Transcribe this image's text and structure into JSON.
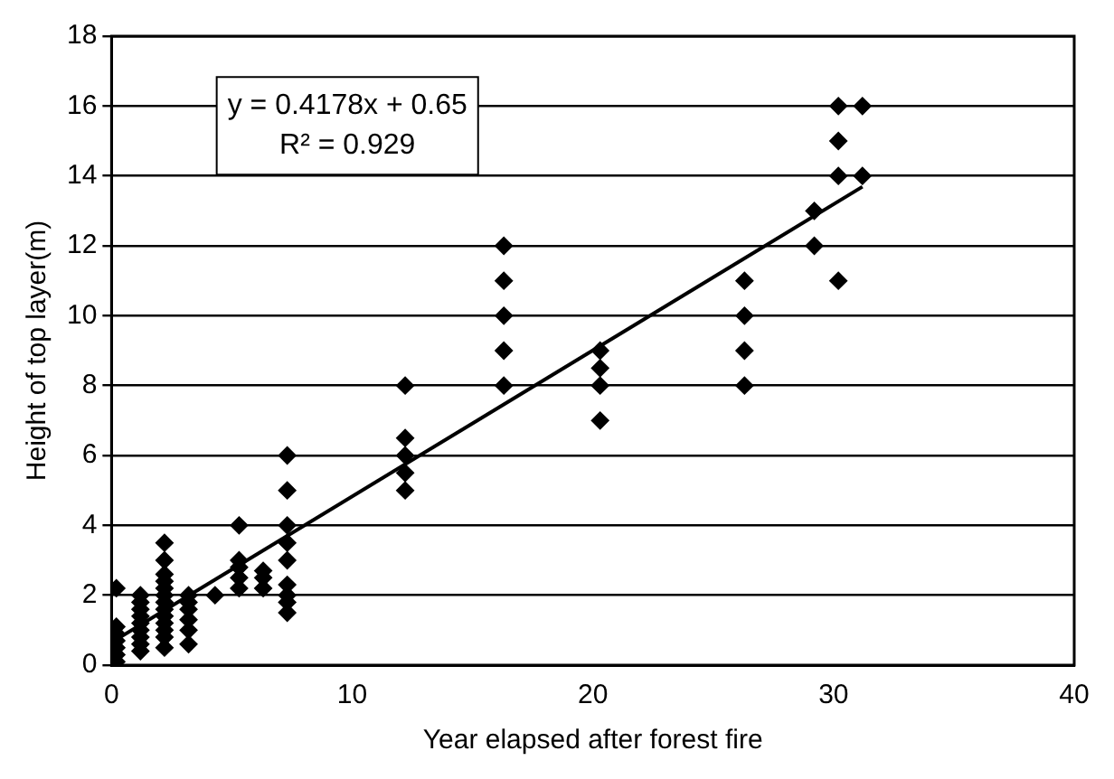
{
  "chart_data": {
    "type": "scatter",
    "xlabel": "Year elapsed after forest fire",
    "ylabel": "Height of top layer(m)",
    "xlim": [
      0,
      40
    ],
    "xticks": [
      0,
      10,
      20,
      30,
      40
    ],
    "ylim": [
      0,
      18
    ],
    "yticks": [
      0,
      2,
      4,
      6,
      8,
      10,
      12,
      14,
      16,
      18
    ],
    "grid": "y",
    "legend": false,
    "marker": "diamond",
    "annotations": [
      "y = 0.4178x + 0.65",
      "R² = 0.929"
    ],
    "series": [
      {
        "color": "#000000",
        "x": [
          0.2,
          0.2,
          0.2,
          0.2,
          0.2,
          0.2,
          0.2,
          1.2,
          1.2,
          1.2,
          1.2,
          1.2,
          1.2,
          1.2,
          1.2,
          1.2,
          2.2,
          2.2,
          2.2,
          2.2,
          2.2,
          2.2,
          2.2,
          2.2,
          2.2,
          2.2,
          2.2,
          2.2,
          2.2,
          3.2,
          3.2,
          3.2,
          3.2,
          3.2,
          3.2,
          4.3,
          5.3,
          5.3,
          5.3,
          5.3,
          5.3,
          6.3,
          6.3,
          6.3,
          7.3,
          7.3,
          7.3,
          7.3,
          7.3,
          7.3,
          7.3,
          7.3,
          7.3,
          12.2,
          12.2,
          12.2,
          12.2,
          12.2,
          16.3,
          16.3,
          16.3,
          16.3,
          16.3,
          20.3,
          20.3,
          20.3,
          20.3,
          26.3,
          26.3,
          26.3,
          26.3,
          29.2,
          29.2,
          30.2,
          30.2,
          30.2,
          30.2,
          31.2,
          31.2
        ],
        "values": [
          0.1,
          0.3,
          0.5,
          0.7,
          0.9,
          1.1,
          2.2,
          0.4,
          0.6,
          0.8,
          1,
          1.2,
          1.4,
          1.6,
          1.8,
          2,
          0.5,
          0.8,
          1,
          1.2,
          1.4,
          1.6,
          1.8,
          2,
          2.2,
          2.4,
          2.6,
          3,
          3.5,
          0.6,
          1,
          1.3,
          1.6,
          1.8,
          2,
          2,
          2.2,
          2.5,
          2.8,
          3,
          4,
          2.2,
          2.5,
          2.7,
          1.5,
          1.8,
          2,
          2.3,
          3,
          3.5,
          4,
          5,
          6,
          5,
          5.5,
          6,
          6.5,
          8,
          8,
          9,
          10,
          11,
          12,
          7,
          8,
          8.5,
          9,
          8,
          9,
          10,
          11,
          12,
          13,
          11,
          14,
          15,
          16,
          14,
          16
        ]
      },
      {
        "type": "line",
        "color": "#000000",
        "marker": "none",
        "x": [
          0,
          31.2
        ],
        "values": [
          0.65,
          13.69
        ]
      }
    ]
  }
}
